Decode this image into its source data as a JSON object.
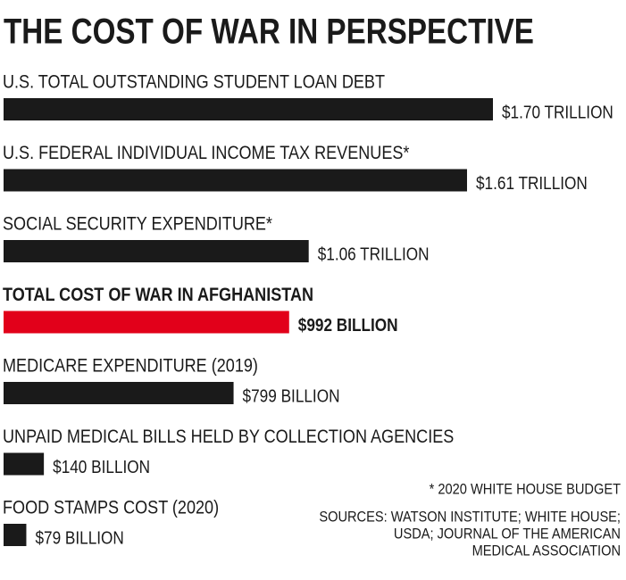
{
  "chart_data": {
    "type": "bar",
    "orientation": "horizontal",
    "title": "THE COST OF WAR IN PERSPECTIVE",
    "categories": [
      "U.S. TOTAL OUTSTANDING STUDENT LOAN DEBT",
      "U.S. FEDERAL INDIVIDUAL INCOME TAX REVENUES*",
      "SOCIAL SECURITY EXPENDITURE*",
      "TOTAL COST OF WAR IN AFGHANISTAN",
      "MEDICARE EXPENDITURE (2019)",
      "UNPAID MEDICAL BILLS HELD BY COLLECTION AGENCIES",
      "FOOD STAMPS COST (2020)"
    ],
    "values": [
      1700,
      1610,
      1060,
      992,
      799,
      140,
      79
    ],
    "value_labels": [
      "$1.70 TRILLION",
      "$1.61 TRILLION",
      "$1.06 TRILLION",
      "$992 BILLION",
      "$799 BILLION",
      "$140 BILLION",
      "$79 BILLION"
    ],
    "colors": [
      "#1a1a1a",
      "#1a1a1a",
      "#1a1a1a",
      "#e2001a",
      "#1a1a1a",
      "#1a1a1a",
      "#1a1a1a"
    ],
    "footnote": "* 2020 WHITE HOUSE BUDGET",
    "sources": [
      "SOURCES: WATSON INSTITUTE; WHITE HOUSE;",
      "USDA; JOURNAL OF THE AMERICAN",
      "MEDICAL ASSOCIATION"
    ]
  }
}
